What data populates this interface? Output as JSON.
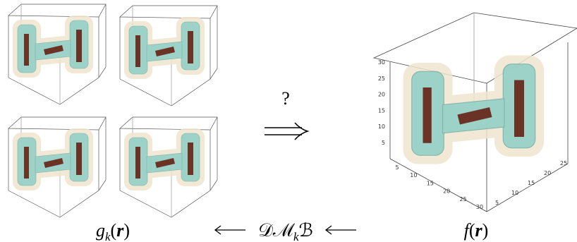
{
  "question": "?",
  "left_label": {
    "function": "g",
    "subscript": "k",
    "open": "(",
    "argument": "r",
    "close": ")"
  },
  "operator": {
    "main": "𝒟ℳ",
    "subscript": "k",
    "tail": "ℬ"
  },
  "right_label": {
    "function": "f",
    "open": "(",
    "argument": "r",
    "close": ")"
  },
  "large_plot": {
    "z_ticks": [
      5,
      10,
      15,
      20,
      25,
      30
    ],
    "x_ticks": [
      5,
      10,
      15,
      20,
      25,
      30
    ],
    "y_ticks": [
      5,
      10,
      15,
      20,
      25
    ]
  }
}
